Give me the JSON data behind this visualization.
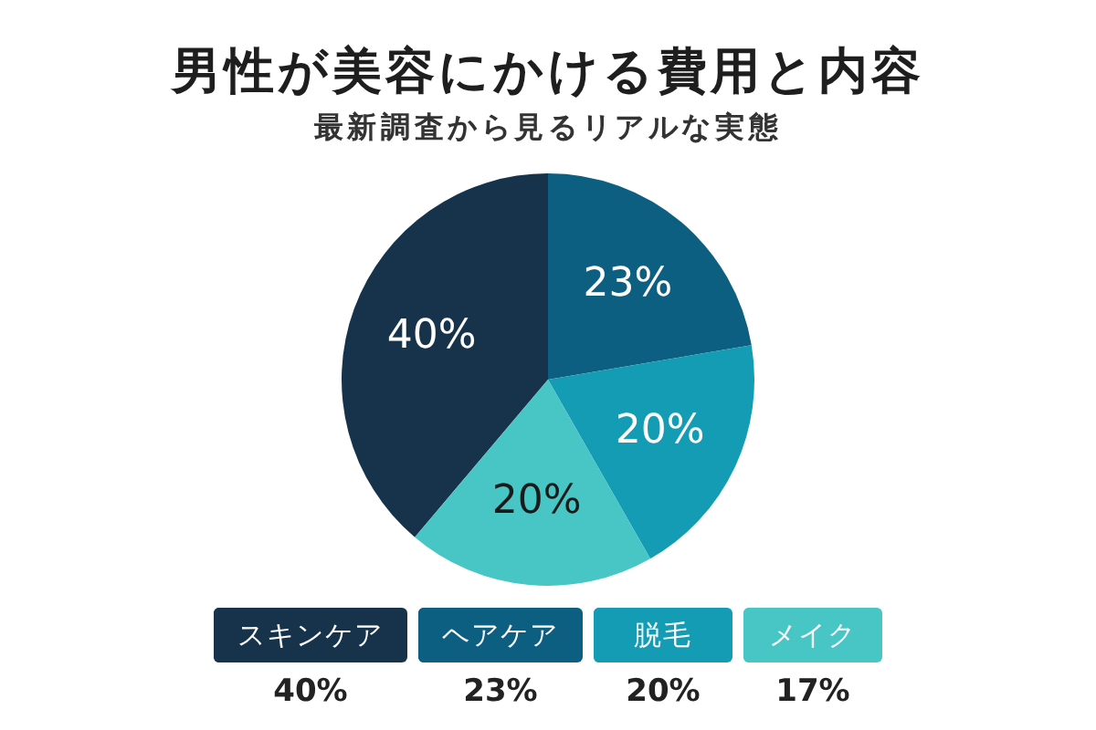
{
  "chart_data": {
    "type": "pie",
    "title": "男性が美容にかける費用と内容",
    "subtitle": "最新調査から見るリアルな実態",
    "categories": [
      "スキンケア",
      "ヘアケア",
      "脱毛",
      "メイク"
    ],
    "values": [
      40,
      23,
      20,
      20
    ],
    "colors": [
      "#17334b",
      "#0c5f80",
      "#139cb4",
      "#48c5c5"
    ],
    "value_labels": [
      "40%",
      "23%",
      "20%",
      "20%"
    ],
    "annotations": [
      {
        "text": "40%",
        "x": "スキンケア"
      },
      {
        "text": "23%",
        "x": "ヘアケア"
      },
      {
        "text": "20%",
        "x": "脱毛"
      },
      {
        "text": "17%",
        "x": "メイク"
      }
    ],
    "legend": "bottom"
  }
}
